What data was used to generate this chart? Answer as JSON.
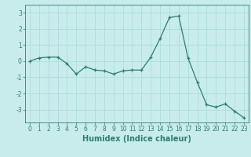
{
  "x": [
    0,
    1,
    2,
    3,
    4,
    5,
    6,
    7,
    8,
    9,
    10,
    11,
    12,
    13,
    14,
    15,
    16,
    17,
    18,
    19,
    20,
    21,
    22,
    23
  ],
  "y": [
    0.0,
    0.2,
    0.25,
    0.25,
    -0.15,
    -0.8,
    -0.35,
    -0.55,
    -0.6,
    -0.8,
    -0.6,
    -0.55,
    -0.55,
    0.25,
    1.4,
    2.7,
    2.8,
    0.2,
    -1.3,
    -2.7,
    -2.85,
    -2.65,
    -3.1,
    -3.5
  ],
  "xlabel": "Humidex (Indice chaleur)",
  "xlim": [
    -0.5,
    23.5
  ],
  "ylim": [
    -3.8,
    3.5
  ],
  "yticks": [
    -3,
    -2,
    -1,
    0,
    1,
    2,
    3
  ],
  "xticks": [
    0,
    1,
    2,
    3,
    4,
    5,
    6,
    7,
    8,
    9,
    10,
    11,
    12,
    13,
    14,
    15,
    16,
    17,
    18,
    19,
    20,
    21,
    22,
    23
  ],
  "line_color": "#2e7d6e",
  "bg_color": "#c8ecec",
  "grid_color": "#a8d8d8",
  "label_fontsize": 7,
  "tick_fontsize": 5.5
}
